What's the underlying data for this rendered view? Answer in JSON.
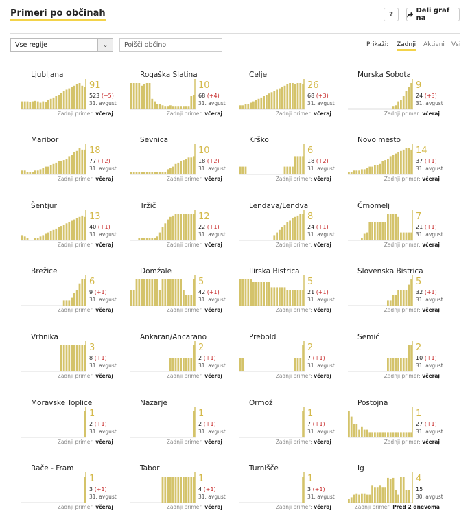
{
  "header": {
    "title": "Primeri po občinah",
    "help_label": "?",
    "share_label": "Deli graf na"
  },
  "controls": {
    "region_select_value": "Vse regije",
    "search_placeholder": "Poišči občino",
    "show_label": "Prikaži:",
    "options": [
      {
        "label": "Zadnji",
        "active": true
      },
      {
        "label": "Aktivni",
        "active": false
      },
      {
        "label": "Vsi",
        "active": false
      }
    ]
  },
  "colors": {
    "bar": "#d4c36a",
    "accent": "#f3d34a",
    "delta": "#c62828"
  },
  "last_case_label": "Zadnji primer:",
  "municipalities": [
    {
      "name": "Ljubljana",
      "latest": "91",
      "total": "523",
      "delta": "(+5)",
      "date": "31. avgust",
      "last_when": "včeraj",
      "bars": [
        0.3,
        0.3,
        0.3,
        0.28,
        0.3,
        0.32,
        0.3,
        0.25,
        0.3,
        0.28,
        0.35,
        0.4,
        0.45,
        0.5,
        0.55,
        0.62,
        0.7,
        0.75,
        0.8,
        0.85,
        0.9,
        0.95,
        1.0,
        0.9,
        0.85
      ]
    },
    {
      "name": "Rogaška Slatina",
      "latest": "10",
      "total": "68",
      "delta": "(+4)",
      "date": "31. avgust",
      "last_when": "včeraj",
      "bars": [
        1.0,
        1.0,
        1.0,
        1.0,
        0.9,
        0.95,
        1.0,
        1.0,
        0.4,
        0.3,
        0.2,
        0.2,
        0.15,
        0.1,
        0.1,
        0.15,
        0.1,
        0.1,
        0.1,
        0.1,
        0.1,
        0.1,
        0.1,
        0.5,
        0.55
      ]
    },
    {
      "name": "Celje",
      "latest": "26",
      "total": "68",
      "delta": "(+3)",
      "date": "31. avgust",
      "last_when": "včeraj",
      "bars": [
        0.15,
        0.15,
        0.2,
        0.2,
        0.25,
        0.3,
        0.35,
        0.4,
        0.45,
        0.5,
        0.55,
        0.6,
        0.65,
        0.7,
        0.75,
        0.8,
        0.85,
        0.9,
        0.95,
        1.0,
        1.0,
        0.95,
        1.0,
        1.0,
        0.95
      ]
    },
    {
      "name": "Murska Sobota",
      "latest": "9",
      "total": "24",
      "delta": "(+3)",
      "date": "31. avgust",
      "last_when": "včeraj",
      "bars": [
        0,
        0,
        0,
        0,
        0,
        0,
        0,
        0,
        0,
        0,
        0,
        0,
        0,
        0,
        0,
        0,
        0,
        0.1,
        0.15,
        0.3,
        0.35,
        0.5,
        0.7,
        0.85,
        1.0
      ]
    },
    {
      "name": "Maribor",
      "latest": "18",
      "total": "77",
      "delta": "(+2)",
      "date": "31. avgust",
      "last_when": "včeraj",
      "bars": [
        0.15,
        0.15,
        0.1,
        0.1,
        0.1,
        0.15,
        0.15,
        0.2,
        0.25,
        0.3,
        0.3,
        0.35,
        0.4,
        0.45,
        0.5,
        0.5,
        0.55,
        0.6,
        0.7,
        0.75,
        0.85,
        0.9,
        1.0,
        0.95,
        0.95
      ]
    },
    {
      "name": "Sevnica",
      "latest": "10",
      "total": "18",
      "delta": "(+2)",
      "date": "31. avgust",
      "last_when": "včeraj",
      "bars": [
        0.1,
        0.1,
        0.1,
        0.1,
        0.1,
        0.1,
        0.1,
        0.1,
        0.1,
        0.1,
        0.1,
        0.1,
        0.1,
        0.1,
        0.2,
        0.25,
        0.3,
        0.4,
        0.45,
        0.5,
        0.55,
        0.6,
        0.65,
        0.65,
        0.7
      ]
    },
    {
      "name": "Krško",
      "latest": "6",
      "total": "18",
      "delta": "(+2)",
      "date": "31. avgust",
      "last_when": "včeraj",
      "bars": [
        0.3,
        0.3,
        0.3,
        0,
        0,
        0,
        0,
        0,
        0,
        0,
        0,
        0,
        0,
        0,
        0,
        0,
        0,
        0.3,
        0.3,
        0.3,
        0.3,
        0.7,
        0.7,
        0.7,
        0.7
      ]
    },
    {
      "name": "Novo mesto",
      "latest": "14",
      "total": "37",
      "delta": "(+1)",
      "date": "31. avgust",
      "last_when": "včeraj",
      "bars": [
        0.1,
        0.1,
        0.15,
        0.15,
        0.15,
        0.2,
        0.2,
        0.25,
        0.3,
        0.3,
        0.35,
        0.35,
        0.4,
        0.5,
        0.55,
        0.6,
        0.7,
        0.75,
        0.8,
        0.85,
        0.9,
        0.95,
        1.0,
        1.0,
        0.95
      ]
    },
    {
      "name": "Šentjur",
      "latest": "13",
      "total": "40",
      "delta": "(+1)",
      "date": "31. avgust",
      "last_when": "včeraj",
      "bars": [
        0.2,
        0.15,
        0.1,
        0,
        0,
        0.1,
        0.1,
        0.15,
        0.2,
        0.25,
        0.3,
        0.35,
        0.4,
        0.45,
        0.5,
        0.55,
        0.6,
        0.65,
        0.7,
        0.75,
        0.8,
        0.85,
        0.9,
        0.95,
        0.9
      ]
    },
    {
      "name": "Tržič",
      "latest": "12",
      "total": "22",
      "delta": "(+1)",
      "date": "31. avgust",
      "last_when": "včeraj",
      "bars": [
        0,
        0,
        0,
        0.1,
        0.1,
        0.1,
        0.1,
        0.1,
        0.1,
        0.1,
        0.15,
        0.3,
        0.5,
        0.65,
        0.8,
        0.9,
        0.95,
        1.0,
        1.0,
        1.0,
        1.0,
        1.0,
        1.0,
        1.0,
        1.0
      ]
    },
    {
      "name": "Lendava/Lendva",
      "latest": "8",
      "total": "24",
      "delta": "(+1)",
      "date": "31. avgust",
      "last_when": "včeraj",
      "bars": [
        0,
        0,
        0,
        0,
        0,
        0,
        0,
        0,
        0,
        0,
        0,
        0,
        0,
        0.2,
        0.3,
        0.4,
        0.5,
        0.6,
        0.7,
        0.75,
        0.85,
        0.9,
        0.95,
        1.0,
        1.0
      ]
    },
    {
      "name": "Črnomelj",
      "latest": "7",
      "total": "21",
      "delta": "(+1)",
      "date": "31. avgust",
      "last_when": "včeraj",
      "bars": [
        0,
        0,
        0,
        0,
        0,
        0.1,
        0.25,
        0.3,
        0.7,
        0.7,
        0.7,
        0.7,
        0.7,
        0.7,
        0.7,
        1.0,
        1.0,
        1.0,
        1.0,
        0.9,
        0.3,
        0.3,
        0.3,
        0.3,
        0.3
      ]
    },
    {
      "name": "Brežice",
      "latest": "6",
      "total": "9",
      "delta": "(+1)",
      "date": "31. avgust",
      "last_when": "včeraj",
      "bars": [
        0,
        0,
        0,
        0,
        0,
        0,
        0,
        0,
        0,
        0,
        0,
        0,
        0,
        0,
        0,
        0,
        0.2,
        0.2,
        0.2,
        0.3,
        0.5,
        0.6,
        0.85,
        1.0,
        1.0
      ]
    },
    {
      "name": "Domžale",
      "latest": "5",
      "total": "42",
      "delta": "(+1)",
      "date": "31. avgust",
      "last_when": "včeraj",
      "bars": [
        0.6,
        0.6,
        1.0,
        1.0,
        1.0,
        1.0,
        1.0,
        1.0,
        1.0,
        1.0,
        1.0,
        0.6,
        1.0,
        1.0,
        1.0,
        1.0,
        1.0,
        1.0,
        1.0,
        1.0,
        0.6,
        0.4,
        0.4,
        0.4,
        1.0
      ]
    },
    {
      "name": "Ilirska Bistrica",
      "latest": "5",
      "total": "21",
      "delta": "(+1)",
      "date": "31. avgust",
      "last_when": "včeraj",
      "bars": [
        1.0,
        1.0,
        1.0,
        1.0,
        1.0,
        0.9,
        0.9,
        0.9,
        0.9,
        0.9,
        0.9,
        0.9,
        0.7,
        0.7,
        0.7,
        0.7,
        0.7,
        0.7,
        0.6,
        0.6,
        0.6,
        0.6,
        0.6,
        0.6,
        0.6
      ]
    },
    {
      "name": "Slovenska Bistrica",
      "latest": "5",
      "total": "32",
      "delta": "(+1)",
      "date": "31. avgust",
      "last_when": "včeraj",
      "bars": [
        0,
        0,
        0,
        0,
        0,
        0,
        0,
        0,
        0,
        0,
        0,
        0,
        0,
        0,
        0,
        0.2,
        0.2,
        0.4,
        0.4,
        0.6,
        0.6,
        0.6,
        0.6,
        0.8,
        1.0
      ]
    },
    {
      "name": "Vrhnika",
      "latest": "3",
      "total": "8",
      "delta": "(+1)",
      "date": "31. avgust",
      "last_when": "včeraj",
      "bars": [
        0,
        0,
        0,
        0,
        0,
        0,
        0,
        0,
        0,
        0,
        0,
        0,
        0,
        0,
        0,
        1.0,
        1.0,
        1.0,
        1.0,
        1.0,
        1.0,
        1.0,
        1.0,
        1.0,
        1.0
      ]
    },
    {
      "name": "Ankaran/Ancarano",
      "latest": "2",
      "total": "2",
      "delta": "(+1)",
      "date": "31. avgust",
      "last_when": "včeraj",
      "bars": [
        0,
        0,
        0,
        0,
        0,
        0,
        0,
        0,
        0,
        0,
        0,
        0,
        0,
        0,
        0,
        0.5,
        0.5,
        0.5,
        0.5,
        0.5,
        0.5,
        0.5,
        0.5,
        0.5,
        1.0
      ]
    },
    {
      "name": "Prebold",
      "latest": "2",
      "total": "7",
      "delta": "(+1)",
      "date": "31. avgust",
      "last_when": "včeraj",
      "bars": [
        0.5,
        0.5,
        0,
        0,
        0,
        0,
        0,
        0,
        0,
        0,
        0,
        0,
        0,
        0,
        0,
        0,
        0,
        0,
        0,
        0,
        0,
        0.5,
        0.5,
        0.5,
        1.0
      ]
    },
    {
      "name": "Semič",
      "latest": "2",
      "total": "10",
      "delta": "(+1)",
      "date": "31. avgust",
      "last_when": "včeraj",
      "bars": [
        0,
        0,
        0,
        0,
        0,
        0,
        0,
        0,
        0,
        0,
        0,
        0,
        0,
        0,
        0,
        0.5,
        0.5,
        0.5,
        0.5,
        0.5,
        0.5,
        0.5,
        0.5,
        1.0,
        1.0
      ]
    },
    {
      "name": "Moravske Toplice",
      "latest": "1",
      "total": "2",
      "delta": "(+1)",
      "date": "31. avgust",
      "last_when": "včeraj",
      "bars": [
        0,
        0,
        0,
        0,
        0,
        0,
        0,
        0,
        0,
        0,
        0,
        0,
        0,
        0,
        0,
        0,
        0,
        0,
        0,
        0,
        0,
        0,
        0,
        0,
        1.0
      ]
    },
    {
      "name": "Nazarje",
      "latest": "1",
      "total": "2",
      "delta": "(+1)",
      "date": "31. avgust",
      "last_when": "včeraj",
      "bars": [
        0,
        0,
        0,
        0,
        0,
        0,
        0,
        0,
        0,
        0,
        0,
        0,
        0,
        0,
        0,
        0,
        0,
        0,
        0,
        0,
        0,
        0,
        0,
        0,
        1.0
      ]
    },
    {
      "name": "Ormož",
      "latest": "1",
      "total": "7",
      "delta": "(+1)",
      "date": "31. avgust",
      "last_when": "včeraj",
      "bars": [
        0,
        0,
        0,
        0,
        0,
        0,
        0,
        0,
        0,
        0,
        0,
        0,
        0,
        0,
        0,
        0,
        0,
        0,
        0,
        0,
        0,
        0,
        0,
        0,
        1.0
      ]
    },
    {
      "name": "Postojna",
      "latest": "1",
      "total": "27",
      "delta": "(+1)",
      "date": "31. avgust",
      "last_when": "včeraj",
      "bars": [
        1.0,
        0.8,
        0.5,
        0.5,
        0.3,
        0.4,
        0.3,
        0.3,
        0.2,
        0.2,
        0.2,
        0.2,
        0.2,
        0.2,
        0.2,
        0.2,
        0.2,
        0.2,
        0.2,
        0.2,
        0.2,
        0.2,
        0.2,
        0.2,
        0.2
      ]
    },
    {
      "name": "Rače - Fram",
      "latest": "1",
      "total": "3",
      "delta": "(+1)",
      "date": "31. avgust",
      "last_when": "včeraj",
      "bars": [
        0,
        0,
        0,
        0,
        0,
        0,
        0,
        0,
        0,
        0,
        0,
        0,
        0,
        0,
        0,
        0,
        0,
        0,
        0,
        0,
        0,
        0,
        0,
        0,
        1.0
      ]
    },
    {
      "name": "Tabor",
      "latest": "1",
      "total": "4",
      "delta": "(+1)",
      "date": "31. avgust",
      "last_when": "včeraj",
      "bars": [
        0,
        0,
        0,
        0,
        0,
        0,
        0,
        0,
        0,
        0,
        0,
        0,
        1.0,
        1.0,
        1.0,
        1.0,
        1.0,
        1.0,
        1.0,
        1.0,
        1.0,
        1.0,
        1.0,
        1.0,
        1.0
      ]
    },
    {
      "name": "Turnišče",
      "latest": "1",
      "total": "3",
      "delta": "(+1)",
      "date": "31. avgust",
      "last_when": "včeraj",
      "bars": [
        0,
        0,
        0,
        0,
        0,
        0,
        0,
        0,
        0,
        0,
        0,
        0,
        0,
        0,
        0,
        0,
        0,
        0,
        0,
        0,
        0,
        0,
        0,
        0,
        1.0
      ]
    },
    {
      "name": "Ig",
      "latest": "4",
      "total": "15",
      "delta": "",
      "date": "30. avgust",
      "last_when": "Pred 2 dnevoma",
      "bars": [
        0.15,
        0.2,
        0.3,
        0.35,
        0.3,
        0.35,
        0.35,
        0.3,
        0.3,
        0.65,
        0.6,
        0.6,
        0.65,
        0.6,
        0.6,
        0.95,
        0.9,
        0.95,
        0.5,
        0.3,
        1.0,
        1.0,
        0.5,
        0.5,
        0
      ]
    }
  ]
}
